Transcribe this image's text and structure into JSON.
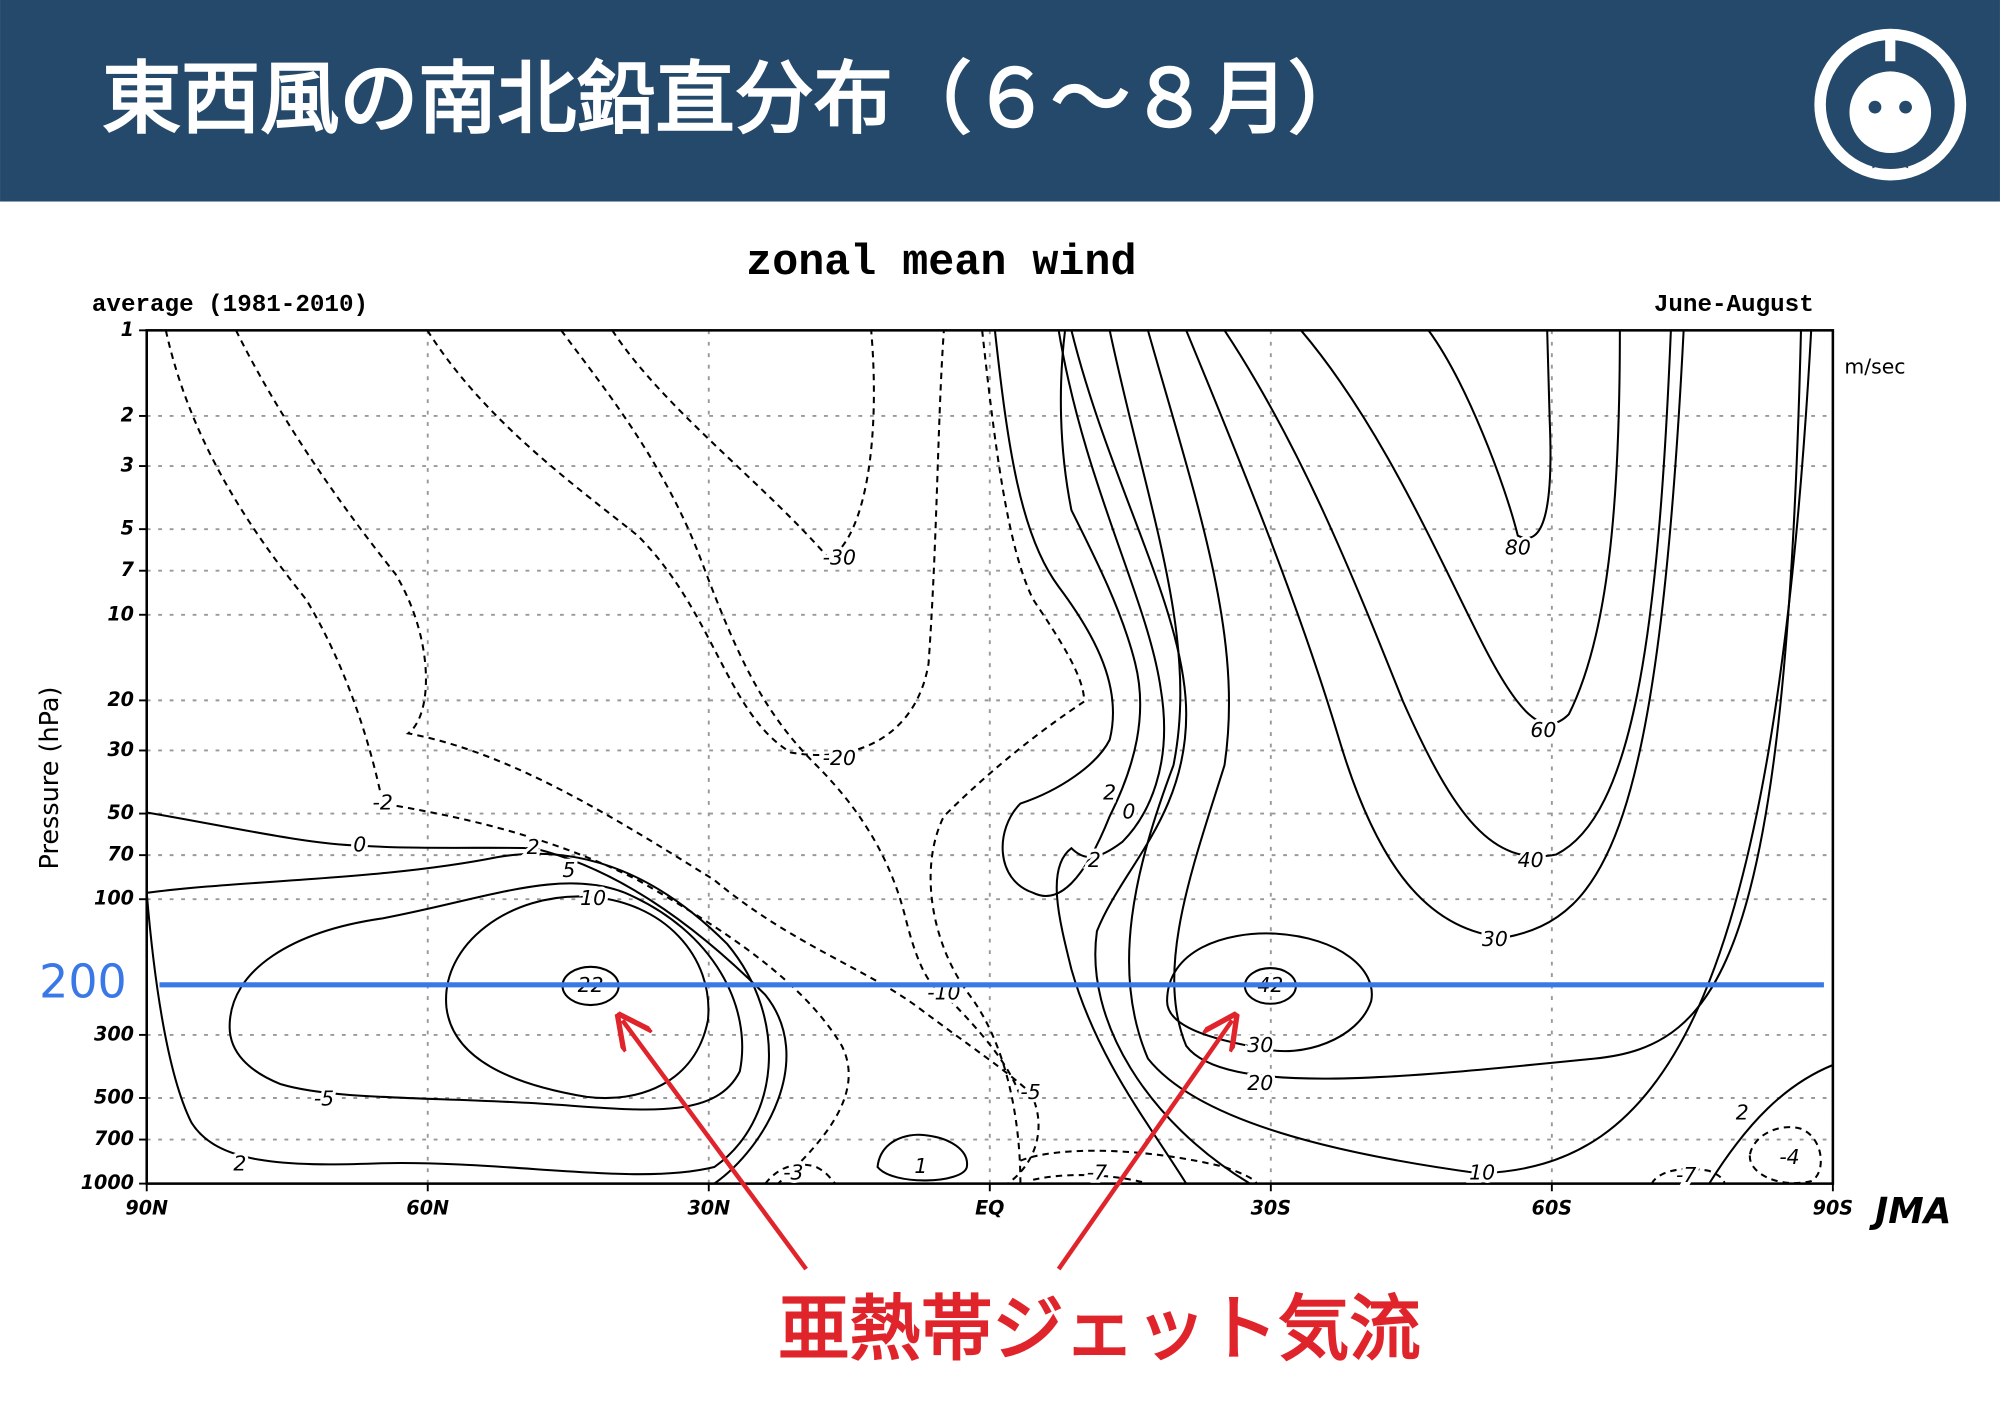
{
  "header": {
    "title": "東西風の南北鉛直分布（６〜８月）"
  },
  "chart_data": {
    "type": "contour",
    "title": "zonal mean wind",
    "subtitle_left": "average (1981-2010)",
    "subtitle_right": "June-August",
    "unit": "m/sec",
    "y_label": "Pressure (hPa)",
    "source": "JMA",
    "log_y": true,
    "grid": true,
    "xlim": [
      90,
      -90
    ],
    "xticks": [
      {
        "value": 90,
        "label": "90N"
      },
      {
        "value": 60,
        "label": "60N"
      },
      {
        "value": 30,
        "label": "30N"
      },
      {
        "value": 0,
        "label": "EQ"
      },
      {
        "value": -30,
        "label": "30S"
      },
      {
        "value": -60,
        "label": "60S"
      },
      {
        "value": -90,
        "label": "90S"
      }
    ],
    "ylim": [
      1000,
      1
    ],
    "yticks": [
      1,
      2,
      3,
      5,
      7,
      10,
      20,
      30,
      50,
      70,
      100,
      300,
      500,
      700,
      1000
    ],
    "reference_level": 200,
    "reference_color": "#3b78e7",
    "annotation": "亜熱帯ジェット気流",
    "annotation_color": "#e0242b",
    "contour_labels": [
      -30,
      80,
      -20,
      60,
      -2,
      2,
      0,
      0,
      2,
      2,
      40,
      5,
      10,
      30,
      22,
      42,
      -10,
      30,
      20,
      -5,
      -5,
      2,
      2,
      1,
      -3,
      -7,
      10,
      -4,
      -7
    ]
  }
}
